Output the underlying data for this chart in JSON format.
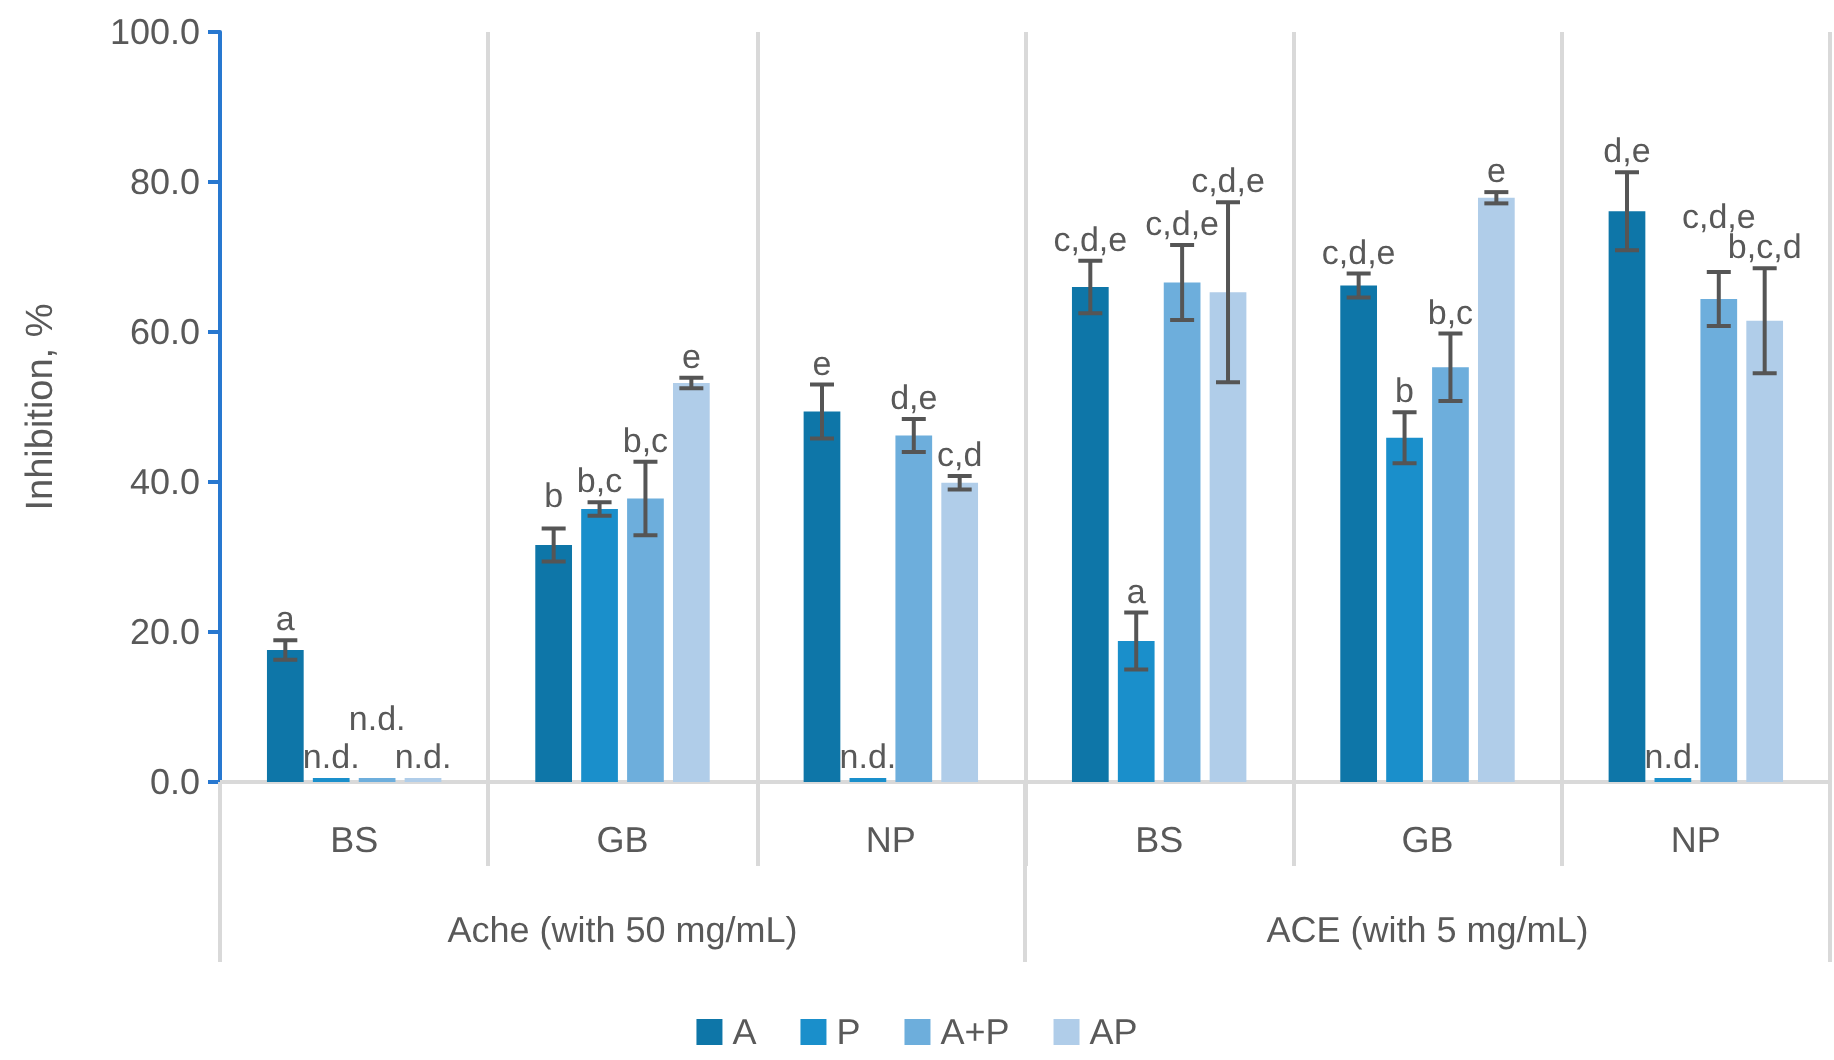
{
  "chart_data": {
    "type": "bar",
    "ylabel": "Inhibition, %",
    "categories": [
      "BS",
      "GB",
      "NP",
      "BS",
      "GB",
      "NP"
    ],
    "annotations": [
      "Ache (with 50 mg/mL)",
      "ACE (with 5 mg/mL)"
    ],
    "series": [
      {
        "name": "A",
        "color": "#0e76a8",
        "values": [
          17.6,
          31.6,
          49.4,
          66.0,
          66.2,
          76.1
        ],
        "errors": [
          1.3,
          2.2,
          3.6,
          3.5,
          1.6,
          5.2
        ],
        "value_labels": [
          "a",
          "b",
          "e",
          "c,d,e",
          "c,d,e",
          "d,e"
        ]
      },
      {
        "name": "P",
        "color": "#1a8fcb",
        "values": [
          0,
          36.4,
          0,
          18.8,
          45.9,
          0
        ],
        "errors": [
          null,
          0.9,
          null,
          3.8,
          3.4,
          null
        ],
        "value_labels": [
          "n.d.",
          "b,c",
          "n.d.",
          "a",
          "b",
          "n.d."
        ]
      },
      {
        "name": "A+P",
        "color": "#6daedc",
        "values": [
          0,
          37.8,
          46.2,
          66.6,
          55.3,
          64.4
        ],
        "errors": [
          null,
          4.9,
          2.2,
          5.0,
          4.5,
          3.6
        ],
        "value_labels": [
          "n.d.",
          "b,c",
          "d,e",
          "c,d,e",
          "b,c",
          "c,d,e"
        ]
      },
      {
        "name": "AP",
        "color": "#b0cde9",
        "values": [
          0,
          53.2,
          39.9,
          65.3,
          77.9,
          61.5
        ],
        "errors": [
          null,
          0.7,
          0.9,
          12.0,
          0.75,
          7.0
        ],
        "value_labels": [
          "n.d.",
          "e",
          "c,d",
          "c,d,e",
          "e",
          "b,c,d"
        ]
      }
    ],
    "ylim": [
      0,
      100
    ],
    "yticks": [
      {
        "value": 0,
        "label": "0.0"
      },
      {
        "value": 20,
        "label": "20.0"
      },
      {
        "value": 40,
        "label": "40.0"
      },
      {
        "value": 60,
        "label": "60.0"
      },
      {
        "value": 80,
        "label": "80.0"
      },
      {
        "value": 100,
        "label": "100.0"
      }
    ],
    "grid": "x",
    "legend": "bottom"
  }
}
